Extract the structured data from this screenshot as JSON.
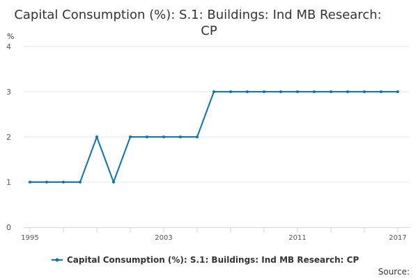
{
  "chart_data": {
    "type": "line",
    "title": "Capital Consumption (%): S.1: Buildings: Ind MB Research: CP",
    "y_unit": "%",
    "xlabel": "",
    "ylabel": "",
    "ylim": [
      0,
      4
    ],
    "yticks": [
      0,
      1,
      2,
      3,
      4
    ],
    "xlim": [
      1995,
      2017
    ],
    "xticks": [
      1995,
      2003,
      2011,
      2017
    ],
    "grid": "horizontal",
    "legend_position": "bottom",
    "colors": {
      "series": "#0a72b5",
      "grid": "#e6e6e6",
      "axis": "#ccd6eb"
    },
    "x": [
      1995,
      1996,
      1997,
      1998,
      1999,
      2000,
      2001,
      2002,
      2003,
      2004,
      2005,
      2006,
      2007,
      2008,
      2009,
      2010,
      2011,
      2012,
      2013,
      2014,
      2015,
      2016,
      2017
    ],
    "series": [
      {
        "name": "Capital Consumption (%): S.1: Buildings: Ind MB Research: CP",
        "values": [
          1,
          1,
          1,
          1,
          2,
          1,
          2,
          2,
          2,
          2,
          2,
          3,
          3,
          3,
          3,
          3,
          3,
          3,
          3,
          3,
          3,
          3,
          3
        ]
      }
    ],
    "source_label": "Source:"
  }
}
